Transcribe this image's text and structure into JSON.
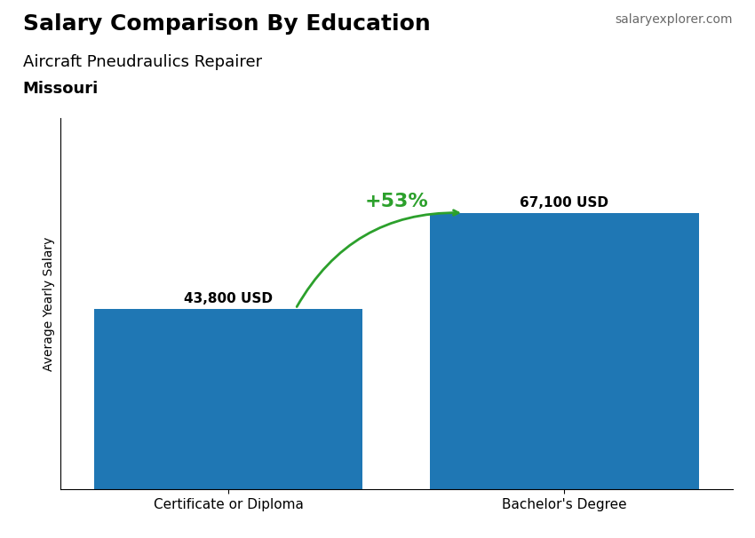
{
  "chart_data": {
    "type": "bar",
    "title": "Salary Comparison By Education",
    "subtitle": "Aircraft Pneudraulics Repairer",
    "location": "Missouri",
    "source": "salaryexplorer.com",
    "ylabel": "Average Yearly Salary",
    "categories": [
      "Certificate or Diploma",
      "Bachelor's Degree"
    ],
    "values": [
      43800,
      67100
    ],
    "value_labels": [
      "43,800 USD",
      "67,100 USD"
    ],
    "data_labels": true,
    "annotations": [
      "+53%"
    ],
    "ylim": [
      0,
      90000
    ],
    "yticks": [],
    "tick_labels": "x"
  }
}
